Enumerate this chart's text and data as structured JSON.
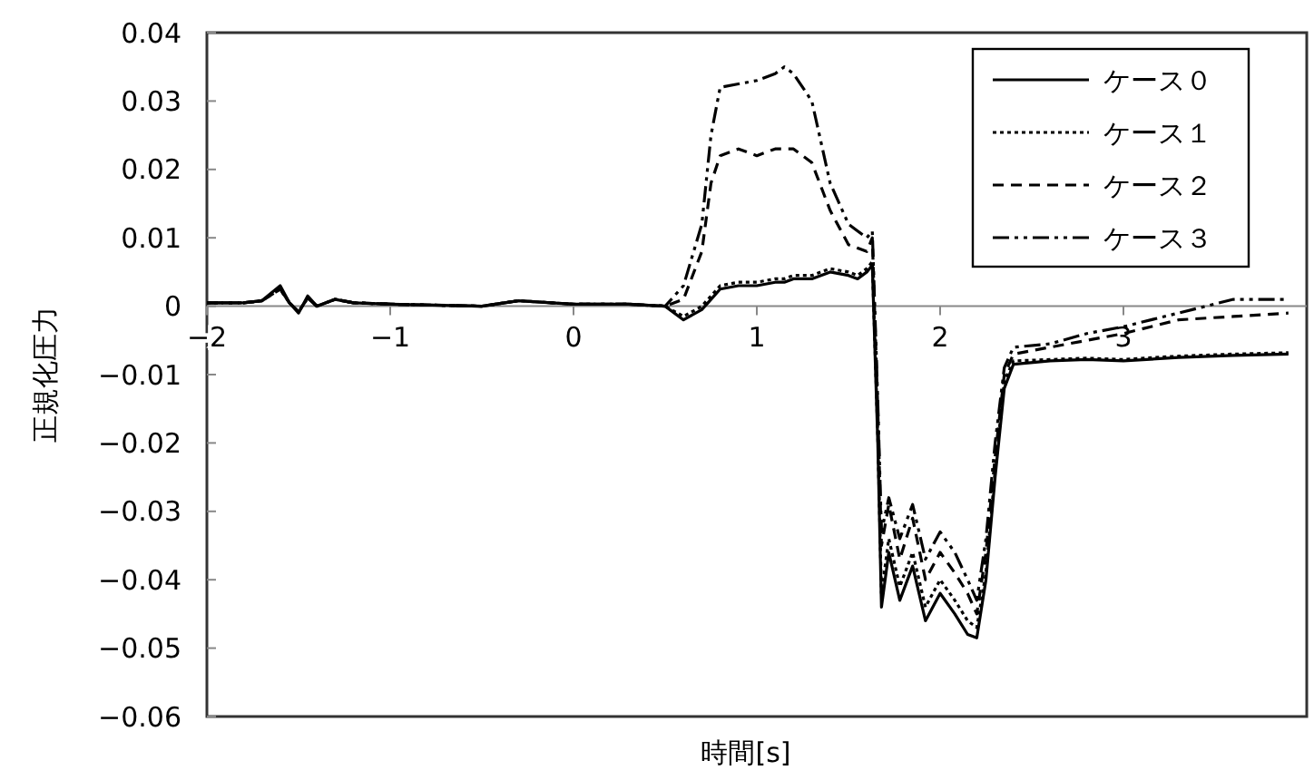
{
  "chart_data": {
    "type": "line",
    "xlabel": "時間[s]",
    "ylabel": "正規化圧力",
    "x": [
      -2,
      -1.8,
      -1.7,
      -1.6,
      -1.55,
      -1.5,
      -1.45,
      -1.4,
      -1.3,
      -1.2,
      -1,
      -0.5,
      -0.3,
      0,
      0.3,
      0.5,
      0.6,
      0.7,
      0.75,
      0.8,
      0.9,
      1.0,
      1.1,
      1.15,
      1.2,
      1.3,
      1.4,
      1.5,
      1.55,
      1.6,
      1.63,
      1.66,
      1.68,
      1.72,
      1.78,
      1.85,
      1.92,
      2.0,
      2.08,
      2.15,
      2.2,
      2.25,
      2.3,
      2.35,
      2.4,
      2.6,
      2.8,
      3.0,
      3.3,
      3.6,
      3.9
    ],
    "series": [
      {
        "name": "ケース０",
        "color": "#000000",
        "line_style": "solid",
        "values": [
          0.0005,
          0.0005,
          0.0008,
          0.003,
          0.0005,
          -0.001,
          0.0015,
          0,
          0.001,
          0.0005,
          0.0003,
          0,
          0.0008,
          0.0003,
          0.0003,
          0,
          -0.002,
          -0.0005,
          0.001,
          0.0025,
          0.003,
          0.003,
          0.0035,
          0.0035,
          0.004,
          0.004,
          0.005,
          0.0045,
          0.004,
          0.005,
          0.006,
          -0.02,
          -0.044,
          -0.036,
          -0.043,
          -0.038,
          -0.046,
          -0.042,
          -0.045,
          -0.048,
          -0.0485,
          -0.04,
          -0.025,
          -0.012,
          -0.0085,
          -0.008,
          -0.0078,
          -0.008,
          -0.0075,
          -0.0072,
          -0.007
        ]
      },
      {
        "name": "ケース１",
        "color": "#000000",
        "line_style": "dotted",
        "values": [
          0.0005,
          0.0005,
          0.0008,
          0.0025,
          0.0005,
          -0.0008,
          0.0012,
          0,
          0.001,
          0.0005,
          0.0003,
          0,
          0.0008,
          0.0003,
          0.0003,
          0,
          -0.0015,
          0,
          0.0015,
          0.003,
          0.0035,
          0.0035,
          0.004,
          0.004,
          0.0045,
          0.0045,
          0.0055,
          0.005,
          0.0045,
          0.0055,
          0.0065,
          -0.019,
          -0.042,
          -0.034,
          -0.041,
          -0.036,
          -0.044,
          -0.04,
          -0.043,
          -0.046,
          -0.047,
          -0.039,
          -0.024,
          -0.011,
          -0.008,
          -0.0078,
          -0.0076,
          -0.0078,
          -0.0073,
          -0.007,
          -0.0068
        ]
      },
      {
        "name": "ケース２",
        "color": "#000000",
        "line_style": "dashed",
        "values": [
          0.0005,
          0.0005,
          0.0008,
          0.0025,
          0.0005,
          -0.0008,
          0.0012,
          0,
          0.001,
          0.0005,
          0.0003,
          0,
          0.0008,
          0.0003,
          0.0003,
          0,
          0.001,
          0.008,
          0.018,
          0.022,
          0.023,
          0.022,
          0.023,
          0.023,
          0.023,
          0.021,
          0.014,
          0.009,
          0.0085,
          0.008,
          0.01,
          -0.015,
          -0.035,
          -0.029,
          -0.037,
          -0.031,
          -0.04,
          -0.036,
          -0.039,
          -0.042,
          -0.045,
          -0.036,
          -0.022,
          -0.01,
          -0.007,
          -0.006,
          -0.005,
          -0.004,
          -0.002,
          -0.0015,
          -0.001
        ]
      },
      {
        "name": "ケース３",
        "color": "#000000",
        "line_style": "dashdot",
        "values": [
          0.0005,
          0.0005,
          0.0008,
          0.0025,
          0.0005,
          -0.0008,
          0.0012,
          0,
          0.001,
          0.0005,
          0.0003,
          0,
          0.0008,
          0.0003,
          0.0003,
          0,
          0.003,
          0.012,
          0.025,
          0.032,
          0.0325,
          0.033,
          0.034,
          0.035,
          0.034,
          0.03,
          0.018,
          0.012,
          0.011,
          0.01,
          0.011,
          -0.014,
          -0.033,
          -0.028,
          -0.034,
          -0.029,
          -0.037,
          -0.033,
          -0.036,
          -0.04,
          -0.043,
          -0.034,
          -0.02,
          -0.009,
          -0.006,
          -0.0055,
          -0.004,
          -0.003,
          -0.001,
          0.001,
          0.001
        ]
      }
    ],
    "xlim": [
      -2,
      4
    ],
    "xticks": [
      {
        "value": -2,
        "label": "−2"
      },
      {
        "value": -1,
        "label": "−1"
      },
      0,
      1,
      2,
      3
    ],
    "ylim": [
      -0.06,
      0.04
    ],
    "yticks": [
      {
        "value": -0.06,
        "label": "−0.06"
      },
      {
        "value": -0.05,
        "label": "−0.05"
      },
      {
        "value": -0.04,
        "label": "−0.04"
      },
      {
        "value": -0.03,
        "label": "−0.03"
      },
      {
        "value": -0.02,
        "label": "−0.02"
      },
      {
        "value": -0.01,
        "label": "−0.01"
      },
      0,
      0.01,
      0.02,
      0.03,
      0.04
    ],
    "grid": false,
    "legend": "top right"
  }
}
